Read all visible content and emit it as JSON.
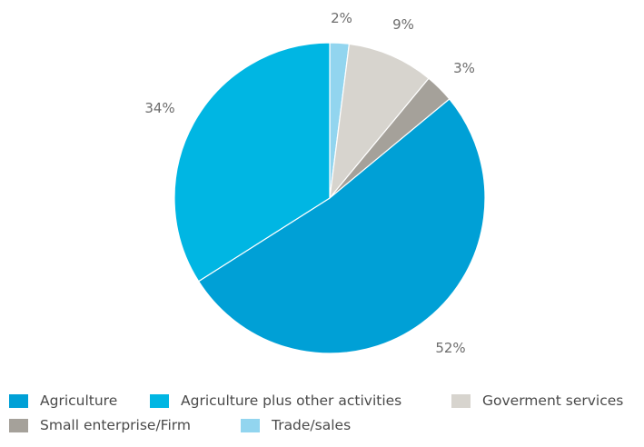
{
  "chart_data": {
    "type": "pie",
    "title": "",
    "start_angle_deg": 0,
    "direction": "clockwise",
    "slices": [
      {
        "name": "Trade/sales",
        "value": 2,
        "label": "2%",
        "color": "#92d5ef"
      },
      {
        "name": "Goverment services",
        "value": 9,
        "label": "9%",
        "color": "#d7d4ce"
      },
      {
        "name": "Small enterprise/Firm",
        "value": 3,
        "label": "3%",
        "color": "#a5a19a"
      },
      {
        "name": "Agriculture",
        "value": 52,
        "label": "52%",
        "color": "#00a0d6"
      },
      {
        "name": "Agriculture plus other activities",
        "value": 34,
        "label": "34%",
        "color": "#00b6e3"
      }
    ],
    "legend": {
      "placement": "bottom",
      "items": [
        {
          "label": "Agriculture",
          "color": "#00a0d6"
        },
        {
          "label": "Agriculture plus other activities",
          "color": "#00b6e3"
        },
        {
          "label": "Goverment services",
          "color": "#d7d4ce"
        },
        {
          "label": "Small enterprise/Firm",
          "color": "#a5a19a"
        },
        {
          "label": "Trade/sales",
          "color": "#92d5ef"
        }
      ]
    }
  }
}
